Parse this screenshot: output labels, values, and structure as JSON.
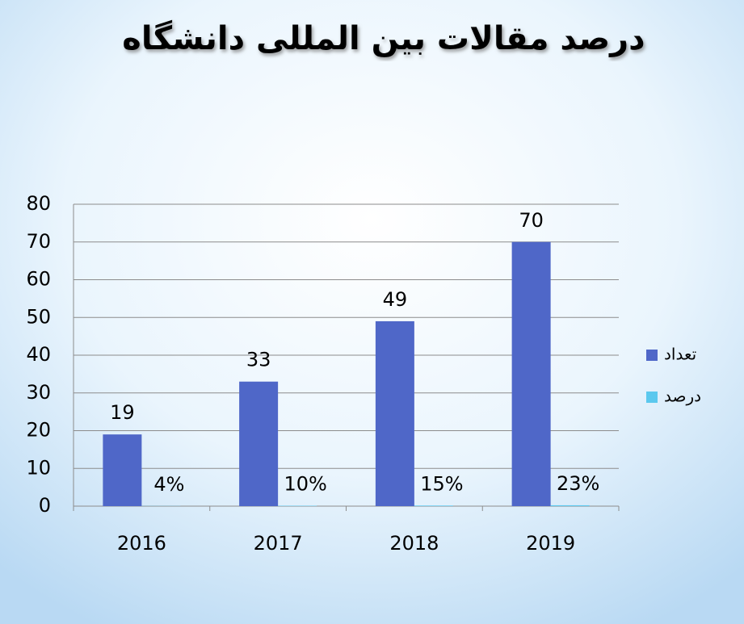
{
  "chart_data": {
    "type": "bar",
    "title": "درصد مقالات بین المللی دانشگاه",
    "categories": [
      "2016",
      "2017",
      "2018",
      "2019"
    ],
    "series": [
      {
        "name": "تعداد",
        "color": "#4f67c8",
        "values": [
          19,
          33,
          49,
          70
        ]
      },
      {
        "name": "درصد",
        "color": "#5bc8ee",
        "values": [
          0.04,
          0.1,
          0.15,
          0.23
        ],
        "value_labels": [
          "4%",
          "10%",
          "15%",
          "23%"
        ]
      }
    ],
    "ylim": [
      0,
      80
    ],
    "yticks": [
      0,
      10,
      20,
      30,
      40,
      50,
      60,
      70,
      80
    ],
    "grid": true,
    "legend": "right"
  }
}
